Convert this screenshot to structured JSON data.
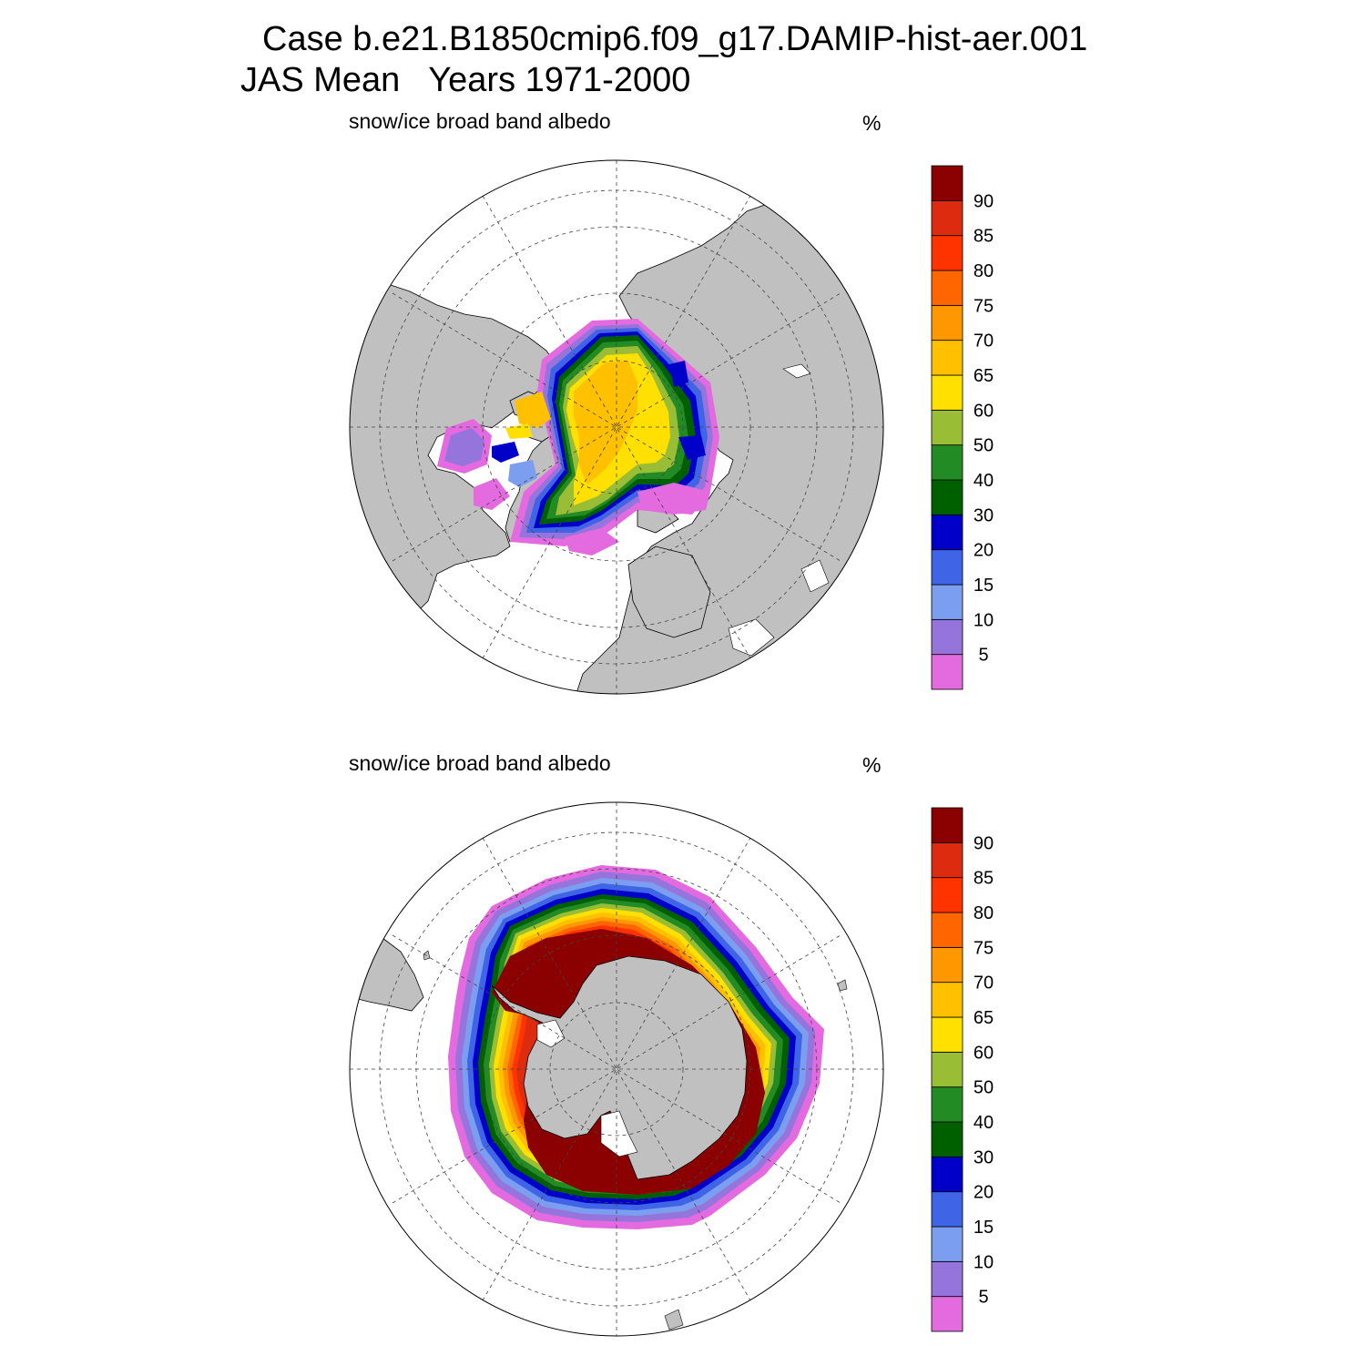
{
  "header": {
    "case_line": "Case b.e21.B1850cmip6.f09_g17.DAMIP-hist-aer.001",
    "period_line": "JAS Mean   Years 1971-2000"
  },
  "colors": {
    "land": "#c0c0c0",
    "ocean": "#ffffff",
    "levels": [
      "#e46ae0",
      "#9574db",
      "#7b9ef0",
      "#3f64e6",
      "#0000c8",
      "#006000",
      "#238b23",
      "#9abd36",
      "#ffe000",
      "#ffc000",
      "#ff9800",
      "#ff6600",
      "#ff3300",
      "#dd2b10",
      "#8b0000"
    ]
  },
  "panels": [
    {
      "id": "north",
      "variable": "snow/ice broad band albedo",
      "units": "%",
      "hemisphere": "Northern Hemisphere (polar stereographic)",
      "colorbar_labels": [
        "5",
        "10",
        "15",
        "20",
        "30",
        "40",
        "50",
        "60",
        "65",
        "70",
        "75",
        "80",
        "85",
        "90"
      ]
    },
    {
      "id": "south",
      "variable": "snow/ice broad band albedo",
      "units": "%",
      "hemisphere": "Southern Hemisphere (polar stereographic)",
      "colorbar_labels": [
        "5",
        "10",
        "15",
        "20",
        "30",
        "40",
        "50",
        "60",
        "65",
        "70",
        "75",
        "80",
        "85",
        "90"
      ]
    }
  ]
}
